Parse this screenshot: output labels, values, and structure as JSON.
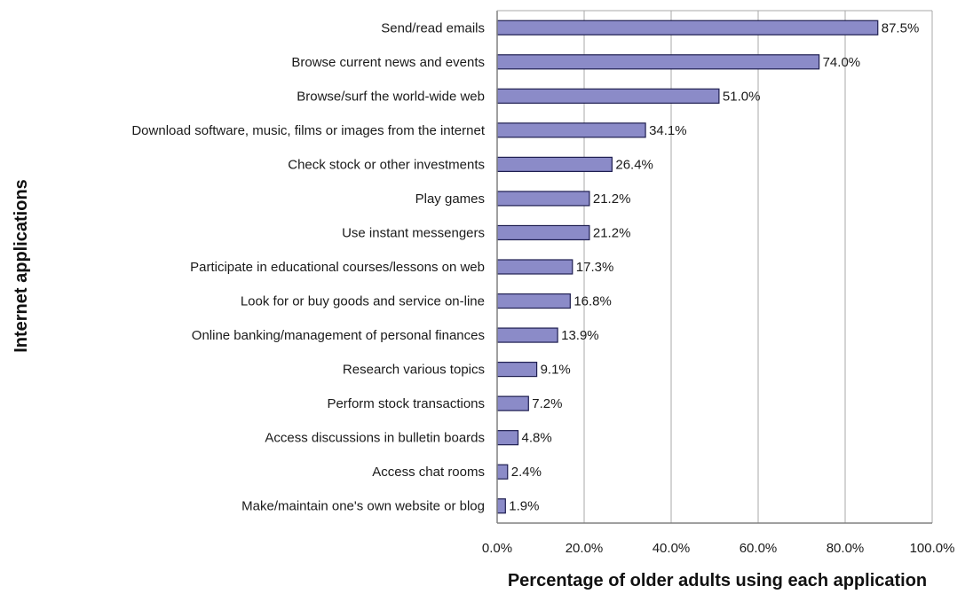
{
  "chart_data": {
    "type": "bar",
    "orientation": "horizontal",
    "xlabel": "Percentage of older adults using each application",
    "ylabel": "Internet applications",
    "xlim": [
      0,
      100
    ],
    "x_ticks": [
      "0.0%",
      "20.0%",
      "40.0%",
      "60.0%",
      "80.0%",
      "100.0%"
    ],
    "grid": "vertical",
    "bar_color": "#8b8bc8",
    "bar_edge_color": "#1e1e50",
    "categories": [
      "Send/read emails",
      "Browse current news and events",
      "Browse/surf the world-wide web",
      "Download software, music, films or images from the internet",
      "Check stock or other investments",
      "Play games",
      "Use instant messengers",
      "Participate in educational courses/lessons on web",
      "Look for or buy goods and service on-line",
      "Online banking/management of personal finances",
      "Research various topics",
      "Perform stock transactions",
      "Access discussions in bulletin boards",
      "Access chat rooms",
      "Make/maintain one's own website or blog"
    ],
    "values": [
      87.5,
      74.0,
      51.0,
      34.1,
      26.4,
      21.2,
      21.2,
      17.3,
      16.8,
      13.9,
      9.1,
      7.2,
      4.8,
      2.4,
      1.9
    ],
    "value_labels": [
      "87.5%",
      "74.0%",
      "51.0%",
      "34.1%",
      "26.4%",
      "21.2%",
      "21.2%",
      "17.3%",
      "16.8%",
      "13.9%",
      "9.1%",
      "7.2%",
      "4.8%",
      "2.4%",
      "1.9%"
    ]
  }
}
